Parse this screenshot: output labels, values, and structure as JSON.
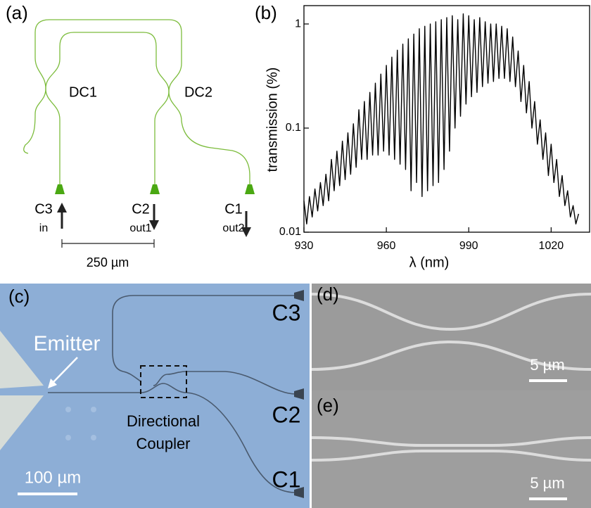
{
  "panel_a": {
    "label": "(a)",
    "dc1": "DC1",
    "dc2": "DC2",
    "ports": [
      {
        "name": "C3",
        "role": "in"
      },
      {
        "name": "C2",
        "role": "out1"
      },
      {
        "name": "C1",
        "role": "out2"
      }
    ],
    "scale_bar": "250 µm"
  },
  "chart_data": {
    "type": "line",
    "panel_label": "(b)",
    "x_label": "λ (nm)",
    "y_label": "transmission (%)",
    "log_y": true,
    "color": "#000000",
    "xlim": [
      930,
      1034
    ],
    "ylim": [
      0.01,
      1.5
    ],
    "xticks": [
      930,
      960,
      990,
      1020
    ],
    "yticks": [
      0.01,
      0.1,
      1
    ],
    "x": [
      930,
      931,
      932,
      933,
      934,
      935,
      936,
      937,
      938,
      939,
      940,
      941,
      942,
      943,
      944,
      945,
      946,
      947,
      948,
      949,
      950,
      951,
      952,
      953,
      954,
      955,
      956,
      957,
      958,
      959,
      960,
      961,
      962,
      963,
      964,
      965,
      966,
      967,
      968,
      969,
      970,
      971,
      972,
      973,
      974,
      975,
      976,
      977,
      978,
      979,
      980,
      981,
      982,
      983,
      984,
      985,
      986,
      987,
      988,
      989,
      990,
      991,
      992,
      993,
      994,
      995,
      996,
      997,
      998,
      999,
      1000,
      1001,
      1002,
      1003,
      1004,
      1005,
      1006,
      1007,
      1008,
      1009,
      1010,
      1011,
      1012,
      1013,
      1014,
      1015,
      1016,
      1017,
      1018,
      1019,
      1020,
      1021,
      1022,
      1023,
      1024,
      1025,
      1026,
      1027,
      1028,
      1029,
      1030
    ],
    "values": [
      0.02,
      0.012,
      0.022,
      0.014,
      0.026,
      0.016,
      0.03,
      0.018,
      0.036,
      0.02,
      0.05,
      0.025,
      0.06,
      0.028,
      0.075,
      0.032,
      0.09,
      0.036,
      0.11,
      0.042,
      0.15,
      0.05,
      0.18,
      0.05,
      0.22,
      0.055,
      0.27,
      0.055,
      0.33,
      0.06,
      0.4,
      0.055,
      0.48,
      0.05,
      0.56,
      0.045,
      0.64,
      0.04,
      0.72,
      0.025,
      0.8,
      0.03,
      0.9,
      0.022,
      0.95,
      0.025,
      1.0,
      0.028,
      1.05,
      0.03,
      1.1,
      0.04,
      1.15,
      0.06,
      1.2,
      0.1,
      1.1,
      0.13,
      1.25,
      0.17,
      1.2,
      0.2,
      1.1,
      0.22,
      1.15,
      0.25,
      1.05,
      0.27,
      1.0,
      0.28,
      1.0,
      0.3,
      0.95,
      0.3,
      0.9,
      0.28,
      0.75,
      0.25,
      0.55,
      0.18,
      0.4,
      0.14,
      0.28,
      0.1,
      0.18,
      0.07,
      0.12,
      0.05,
      0.09,
      0.035,
      0.07,
      0.03,
      0.05,
      0.022,
      0.035,
      0.018,
      0.025,
      0.014,
      0.018,
      0.012,
      0.015
    ]
  },
  "panel_c": {
    "label": "(c)",
    "emitter": "Emitter",
    "coupler_label": [
      "Directional",
      "Coupler"
    ],
    "ports": [
      "C3",
      "C2",
      "C1"
    ],
    "scale_bar": "100 µm"
  },
  "panel_d": {
    "label": "(d)",
    "scale_bar": "5 µm"
  },
  "panel_e": {
    "label": "(e)",
    "scale_bar": "5 µm"
  }
}
